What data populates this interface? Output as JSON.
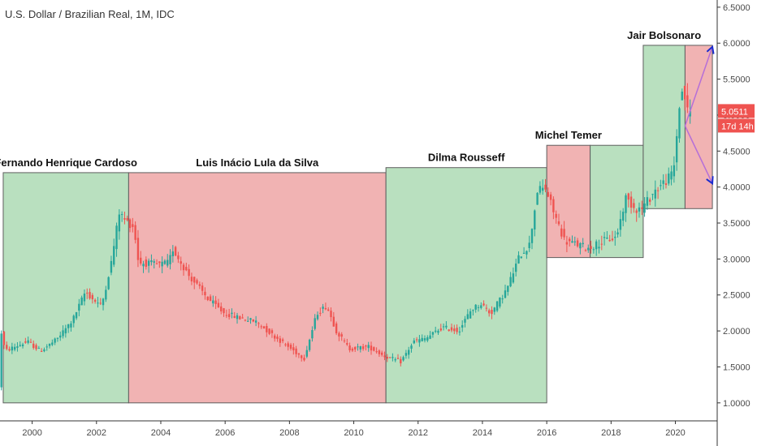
{
  "title": "U.S. Dollar / Brazilian Real, 1M, IDC",
  "colors": {
    "up": "#26a69a",
    "down": "#ef5350",
    "green_zone": "#b9e0bf",
    "red_zone": "#f1b3b3",
    "zone_border": "#5e5e5e",
    "price_tag": "#ef5350",
    "arrow": "#b56fd8",
    "arrow_head": "#1a2ccf"
  },
  "chart_data": {
    "type": "candlestick",
    "xlim": [
      1999.0,
      2021.3
    ],
    "ylim": [
      0.75,
      6.6
    ],
    "x_ticks": [
      {
        "x": 2000,
        "label": "2000"
      },
      {
        "x": 2002,
        "label": "2002"
      },
      {
        "x": 2004,
        "label": "2004"
      },
      {
        "x": 2006,
        "label": "2006"
      },
      {
        "x": 2008,
        "label": "2008"
      },
      {
        "x": 2010,
        "label": "2010"
      },
      {
        "x": 2012,
        "label": "2012"
      },
      {
        "x": 2014,
        "label": "2014"
      },
      {
        "x": 2016,
        "label": "2016"
      },
      {
        "x": 2018,
        "label": "2018"
      },
      {
        "x": 2020,
        "label": "2020"
      }
    ],
    "y_ticks": [
      {
        "y": 1.0,
        "label": "1.0000"
      },
      {
        "y": 1.5,
        "label": "1.5000"
      },
      {
        "y": 2.0,
        "label": "2.0000"
      },
      {
        "y": 2.5,
        "label": "2.5000"
      },
      {
        "y": 3.0,
        "label": "3.0000"
      },
      {
        "y": 3.5,
        "label": "3.5000"
      },
      {
        "y": 4.0,
        "label": "4.0000"
      },
      {
        "y": 4.5,
        "label": "4.5000"
      },
      {
        "y": 5.0,
        "label": "5.0000"
      },
      {
        "y": 5.5,
        "label": "5.5000"
      },
      {
        "y": 6.0,
        "label": "6.0000"
      },
      {
        "y": 6.5,
        "label": "6.5000"
      }
    ],
    "regions": [
      {
        "label": "Fernando Henrique Cardoso",
        "x0": 1999.1,
        "x1": 2003.0,
        "y0": 1.0,
        "y1": 4.2,
        "zone": "green"
      },
      {
        "label": "Luis Inácio Lula da Silva",
        "x0": 2003.0,
        "x1": 2011.0,
        "y0": 1.0,
        "y1": 4.2,
        "zone": "red"
      },
      {
        "label": "Dilma Rousseff",
        "x0": 2011.0,
        "x1": 2016.0,
        "y0": 1.0,
        "y1": 4.27,
        "zone": "green"
      },
      {
        "label": "Michel Temer",
        "x0": 2016.0,
        "x1": 2017.35,
        "y0": 3.02,
        "y1": 4.58,
        "zone": "red"
      },
      {
        "label": "",
        "x0": 2017.35,
        "x1": 2019.0,
        "y0": 3.02,
        "y1": 4.58,
        "zone": "green"
      },
      {
        "label": "Jair Bolsonaro",
        "x0": 2019.0,
        "x1": 2020.3,
        "y0": 3.7,
        "y1": 5.97,
        "zone": "green"
      },
      {
        "label": "",
        "x0": 2020.3,
        "x1": 2021.15,
        "y0": 3.7,
        "y1": 5.97,
        "zone": "red"
      }
    ],
    "last_price": "5.0511",
    "countdown": "17d 14h",
    "projection": {
      "from": [
        2020.3,
        4.85
      ],
      "to_up": [
        2021.15,
        5.95
      ],
      "to_down": [
        2021.15,
        4.05
      ]
    },
    "price_anchors": [
      [
        1999.0,
        1.21
      ],
      [
        1999.05,
        2.05
      ],
      [
        1999.2,
        1.72
      ],
      [
        1999.5,
        1.78
      ],
      [
        1999.9,
        1.85
      ],
      [
        2000.3,
        1.72
      ],
      [
        2000.8,
        1.88
      ],
      [
        2001.3,
        2.15
      ],
      [
        2001.7,
        2.55
      ],
      [
        2001.9,
        2.45
      ],
      [
        2002.2,
        2.35
      ],
      [
        2002.5,
        2.95
      ],
      [
        2002.75,
        3.65
      ],
      [
        2002.9,
        3.55
      ],
      [
        2003.2,
        3.45
      ],
      [
        2003.35,
        2.95
      ],
      [
        2004.0,
        2.92
      ],
      [
        2004.3,
        2.95
      ],
      [
        2004.4,
        3.15
      ],
      [
        2004.9,
        2.78
      ],
      [
        2005.5,
        2.45
      ],
      [
        2006.0,
        2.25
      ],
      [
        2006.5,
        2.18
      ],
      [
        2007.0,
        2.13
      ],
      [
        2007.5,
        1.95
      ],
      [
        2008.0,
        1.78
      ],
      [
        2008.5,
        1.62
      ],
      [
        2008.9,
        2.25
      ],
      [
        2009.2,
        2.35
      ],
      [
        2009.5,
        2.0
      ],
      [
        2009.9,
        1.75
      ],
      [
        2010.5,
        1.78
      ],
      [
        2011.0,
        1.65
      ],
      [
        2011.5,
        1.57
      ],
      [
        2011.9,
        1.85
      ],
      [
        2012.3,
        1.9
      ],
      [
        2012.8,
        2.05
      ],
      [
        2013.3,
        2.0
      ],
      [
        2013.7,
        2.3
      ],
      [
        2014.0,
        2.38
      ],
      [
        2014.3,
        2.24
      ],
      [
        2014.8,
        2.58
      ],
      [
        2015.2,
        3.05
      ],
      [
        2015.5,
        3.2
      ],
      [
        2015.75,
        3.95
      ],
      [
        2016.0,
        3.98
      ],
      [
        2016.3,
        3.6
      ],
      [
        2016.6,
        3.25
      ],
      [
        2017.0,
        3.2
      ],
      [
        2017.35,
        3.15
      ],
      [
        2017.8,
        3.25
      ],
      [
        2018.2,
        3.3
      ],
      [
        2018.5,
        3.85
      ],
      [
        2018.8,
        3.7
      ],
      [
        2019.0,
        3.7
      ],
      [
        2019.4,
        3.95
      ],
      [
        2019.9,
        4.15
      ],
      [
        2020.0,
        4.3
      ],
      [
        2020.2,
        5.3
      ],
      [
        2020.3,
        5.35
      ],
      [
        2020.4,
        5.05
      ]
    ]
  }
}
